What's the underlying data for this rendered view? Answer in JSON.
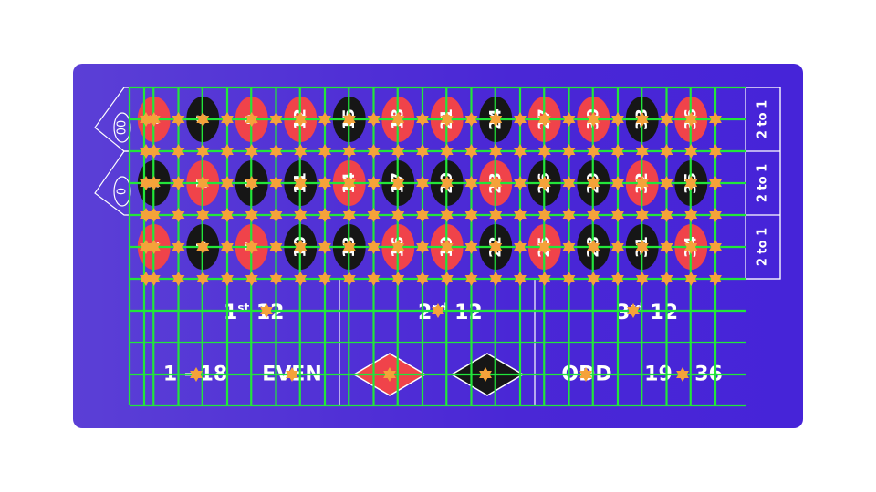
{
  "zeros": [
    "00",
    "0"
  ],
  "rows": [
    [
      {
        "n": "3",
        "color": "red"
      },
      {
        "n": "6",
        "color": "black"
      },
      {
        "n": "9",
        "color": "red"
      },
      {
        "n": "12",
        "color": "red"
      },
      {
        "n": "15",
        "color": "black"
      },
      {
        "n": "18",
        "color": "red"
      },
      {
        "n": "21",
        "color": "red"
      },
      {
        "n": "24",
        "color": "black"
      },
      {
        "n": "27",
        "color": "red"
      },
      {
        "n": "30",
        "color": "red"
      },
      {
        "n": "33",
        "color": "black"
      },
      {
        "n": "36",
        "color": "red"
      }
    ],
    [
      {
        "n": "2",
        "color": "black"
      },
      {
        "n": "5",
        "color": "red"
      },
      {
        "n": "8",
        "color": "black"
      },
      {
        "n": "11",
        "color": "black"
      },
      {
        "n": "14",
        "color": "red"
      },
      {
        "n": "17",
        "color": "black"
      },
      {
        "n": "20",
        "color": "black"
      },
      {
        "n": "23",
        "color": "red"
      },
      {
        "n": "26",
        "color": "black"
      },
      {
        "n": "29",
        "color": "black"
      },
      {
        "n": "32",
        "color": "red"
      },
      {
        "n": "35",
        "color": "black"
      }
    ],
    [
      {
        "n": "1",
        "color": "red"
      },
      {
        "n": "4",
        "color": "black"
      },
      {
        "n": "7",
        "color": "red"
      },
      {
        "n": "10",
        "color": "black"
      },
      {
        "n": "13",
        "color": "black"
      },
      {
        "n": "16",
        "color": "red"
      },
      {
        "n": "19",
        "color": "red"
      },
      {
        "n": "22",
        "color": "black"
      },
      {
        "n": "25",
        "color": "red"
      },
      {
        "n": "28",
        "color": "black"
      },
      {
        "n": "31",
        "color": "black"
      },
      {
        "n": "34",
        "color": "red"
      }
    ]
  ],
  "column_bets": [
    "2 to 1",
    "2 to 1",
    "2 to 1"
  ],
  "dozens": [
    {
      "ordinal": "1",
      "suffix": "st",
      "label": "12"
    },
    {
      "ordinal": "2",
      "suffix": "nd",
      "label": "12"
    },
    {
      "ordinal": "3",
      "suffix": "rd",
      "label": "12"
    }
  ],
  "outside_bets": {
    "low": "1 - 18",
    "even": "EVEN",
    "red_diamond": "red",
    "black_diamond": "black",
    "odd": "ODD",
    "high": "19 - 36"
  },
  "colors": {
    "panel": "#4a27d6",
    "grid_line": "#22e63a",
    "red": "#f0434a",
    "black": "#161616",
    "marker": "#f5a23a",
    "text": "#ffffff"
  }
}
